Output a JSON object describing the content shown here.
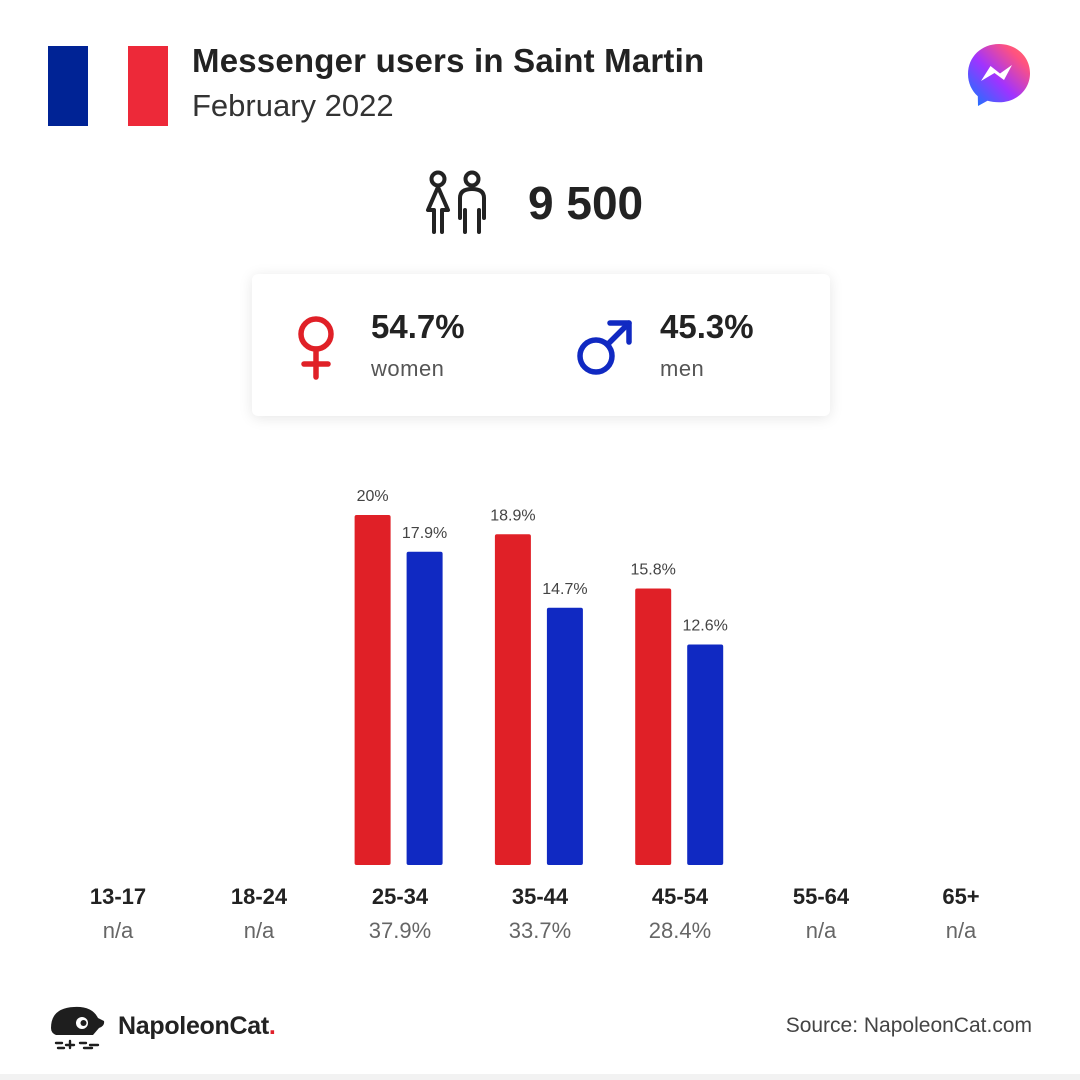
{
  "header": {
    "title": "Messenger users in Saint Martin",
    "subtitle": "February 2022",
    "flag_colors": [
      "#002395",
      "#ffffff",
      "#ed2939"
    ]
  },
  "icons": {
    "platform_logo": "messenger-icon",
    "users_icon": "people-icon",
    "female_icon": "female-symbol-icon",
    "male_icon": "male-symbol-icon",
    "brand_logo": "napoleoncat-icon"
  },
  "total": {
    "value": "9 500"
  },
  "gender": {
    "women": {
      "value": "54.7%",
      "label": "women",
      "color": "#e02027"
    },
    "men": {
      "value": "45.3%",
      "label": "men",
      "color": "#1029c2"
    }
  },
  "age_groups": [
    {
      "label": "13-17",
      "total": "n/a"
    },
    {
      "label": "18-24",
      "total": "n/a"
    },
    {
      "label": "25-34",
      "total": "37.9%"
    },
    {
      "label": "35-44",
      "total": "33.7%"
    },
    {
      "label": "45-54",
      "total": "28.4%"
    },
    {
      "label": "55-64",
      "total": "n/a"
    },
    {
      "label": "65+",
      "total": "n/a"
    }
  ],
  "chart_data": {
    "type": "bar",
    "categories": [
      "13-17",
      "18-24",
      "25-34",
      "35-44",
      "45-54",
      "55-64",
      "65+"
    ],
    "series": [
      {
        "name": "women",
        "color": "#e02027",
        "values": [
          null,
          null,
          20,
          18.9,
          15.8,
          null,
          null
        ],
        "labels": [
          null,
          null,
          "20%",
          "18.9%",
          "15.8%",
          null,
          null
        ]
      },
      {
        "name": "men",
        "color": "#1029c2",
        "values": [
          null,
          null,
          17.9,
          14.7,
          12.6,
          null,
          null
        ],
        "labels": [
          null,
          null,
          "17.9%",
          "14.7%",
          "12.6%",
          null,
          null
        ]
      }
    ],
    "ylim": [
      0,
      20
    ],
    "grid": false
  },
  "footer": {
    "brand_name": "NapoleonCat",
    "brand_dot": ".",
    "source": "Source: NapoleonCat.com"
  }
}
